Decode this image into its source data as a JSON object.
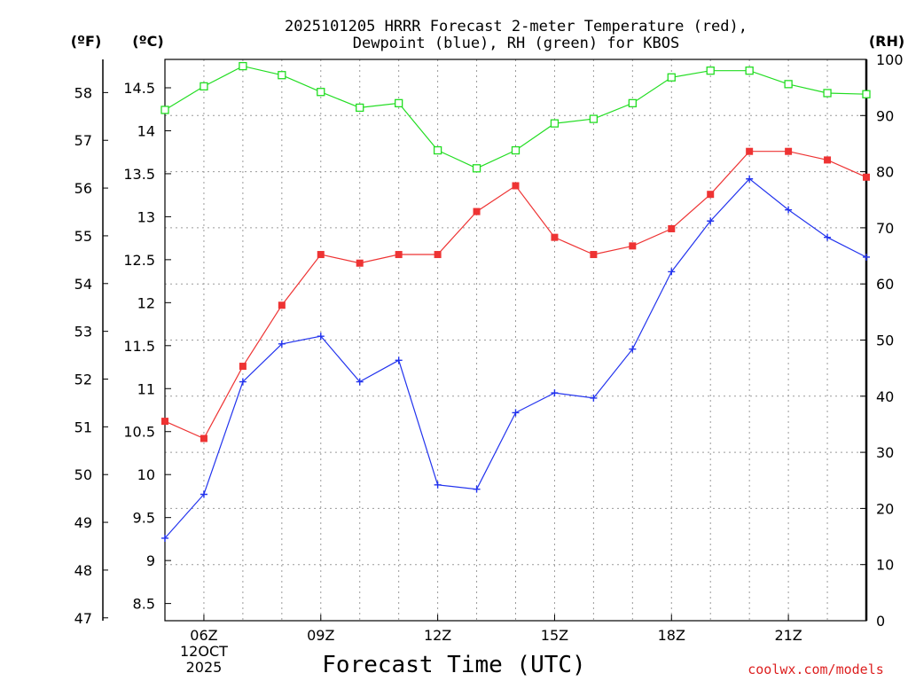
{
  "chart_data": {
    "type": "line",
    "title_lines": [
      "2025101205 HRRR Forecast 2-meter Temperature (red),",
      "Dewpoint (blue), RH (green) for KBOS"
    ],
    "xlabel": "Forecast Time (UTC)",
    "credit": "coolwx.com/models",
    "units": {
      "fahrenheit": "(ºF)",
      "celsius": "(ºC)",
      "rh": "(RH)"
    },
    "x_hours": [
      5,
      6,
      7,
      8,
      9,
      10,
      11,
      12,
      13,
      14,
      15,
      16,
      17,
      18,
      19,
      20,
      21,
      22,
      23
    ],
    "xlim": [
      5,
      23
    ],
    "x_ticks": [
      {
        "hour": 6,
        "lines": [
          "06Z",
          "12OCT",
          "2025"
        ]
      },
      {
        "hour": 9,
        "lines": [
          "09Z"
        ]
      },
      {
        "hour": 12,
        "lines": [
          "12Z"
        ]
      },
      {
        "hour": 15,
        "lines": [
          "15Z"
        ]
      },
      {
        "hour": 18,
        "lines": [
          "18Z"
        ]
      },
      {
        "hour": 21,
        "lines": [
          "21Z"
        ]
      }
    ],
    "celsius_axis": {
      "ylim": [
        8.3,
        14.83
      ],
      "ticks": [
        8.5,
        9,
        9.5,
        10,
        10.5,
        11,
        11.5,
        12,
        12.5,
        13,
        13.5,
        14,
        14.5
      ]
    },
    "fahrenheit_ticks": [
      47,
      48,
      49,
      50,
      51,
      52,
      53,
      54,
      55,
      56,
      57,
      58
    ],
    "rh_axis": {
      "ylim": [
        0,
        100
      ],
      "ticks": [
        0,
        10,
        20,
        30,
        40,
        50,
        60,
        70,
        80,
        90,
        100
      ]
    },
    "series": [
      {
        "name": "Temperature",
        "axis": "celsius",
        "color": "#ee3333",
        "marker": "filled-square",
        "values": [
          10.62,
          10.42,
          11.26,
          11.97,
          12.56,
          12.46,
          12.56,
          12.56,
          13.06,
          13.36,
          12.76,
          12.56,
          12.66,
          12.86,
          13.26,
          13.76,
          13.76,
          13.66,
          13.46
        ]
      },
      {
        "name": "Dewpoint",
        "axis": "celsius",
        "color": "#2233ee",
        "marker": "plus",
        "values": [
          9.26,
          9.77,
          11.08,
          11.52,
          11.61,
          11.08,
          11.33,
          9.88,
          9.83,
          10.72,
          10.95,
          10.89,
          11.46,
          12.36,
          12.95,
          13.44,
          13.08,
          12.76,
          12.53
        ]
      },
      {
        "name": "RH",
        "axis": "rh",
        "color": "#22dd22",
        "marker": "open-square",
        "values": [
          91.0,
          95.2,
          98.8,
          97.2,
          94.2,
          91.4,
          92.2,
          83.8,
          80.6,
          83.8,
          88.6,
          89.4,
          92.2,
          96.8,
          98.0,
          98.0,
          95.6,
          94.0,
          93.8
        ]
      }
    ]
  }
}
